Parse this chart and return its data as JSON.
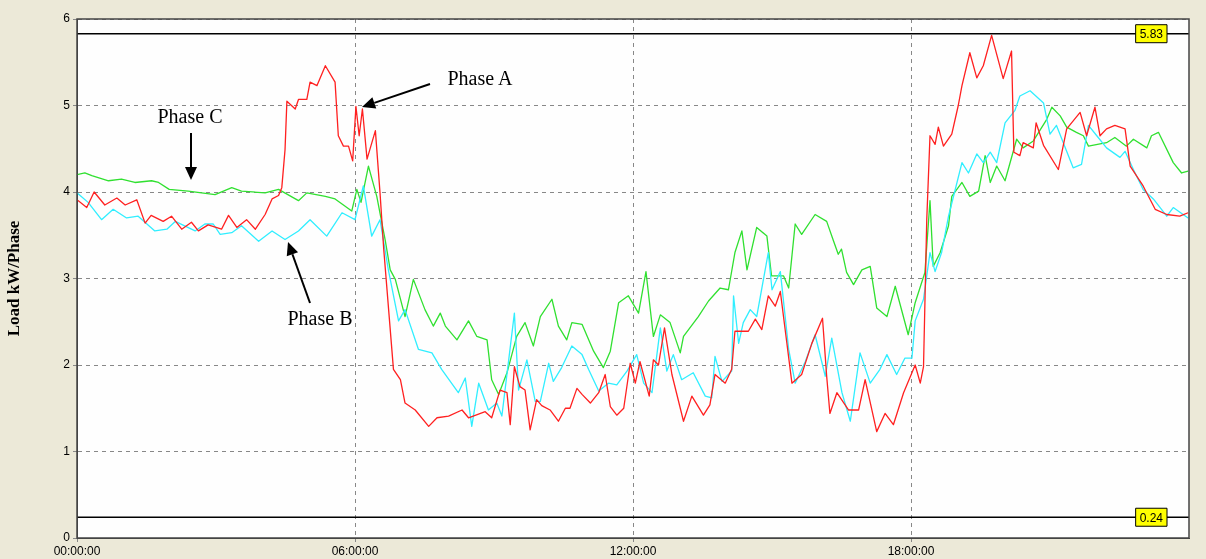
{
  "chart_data": {
    "type": "line",
    "ylabel": "Load kW/Phase",
    "xlim": [
      0,
      24
    ],
    "xticks": [
      {
        "value": 0,
        "label": "00:00:00"
      },
      {
        "value": 6,
        "label": "06:00:00"
      },
      {
        "value": 12,
        "label": "12:00:00"
      },
      {
        "value": 18,
        "label": "18:00:00"
      }
    ],
    "ylim": [
      0,
      6
    ],
    "yticks": [
      0,
      1,
      2,
      3,
      4,
      5,
      6
    ],
    "grid": true,
    "legend": false,
    "marker": "none",
    "line_style": "solid",
    "ref_lines": [
      {
        "axis": "y",
        "value": 5.83,
        "label": "5.83",
        "color": "#000000"
      },
      {
        "axis": "y",
        "value": 0.24,
        "label": "0.24",
        "color": "#000000"
      }
    ],
    "annotations": [
      "Phase A",
      "Phase B",
      "Phase C"
    ],
    "series": [
      {
        "color": "#ff2020",
        "x": [
          0,
          0.21,
          0.37,
          0.6,
          0.86,
          1.04,
          1.29,
          1.47,
          1.6,
          1.86,
          2.04,
          2.26,
          2.47,
          2.62,
          2.83,
          3.12,
          3.27,
          3.45,
          3.66,
          3.85,
          4.06,
          4.21,
          4.35,
          4.42,
          4.49,
          4.53,
          4.71,
          4.78,
          4.96,
          5.03,
          5.18,
          5.36,
          5.57,
          5.64,
          5.75,
          5.86,
          5.95,
          6.02,
          6.09,
          6.16,
          6.26,
          6.44,
          6.54,
          6.62,
          6.83,
          6.98,
          7.08,
          7.3,
          7.59,
          7.77,
          8.02,
          8.31,
          8.45,
          8.81,
          8.95,
          9.13,
          9.28,
          9.35,
          9.44,
          9.56,
          9.67,
          9.78,
          9.92,
          10.03,
          10.21,
          10.39,
          10.54,
          10.64,
          10.79,
          10.9,
          11.08,
          11.26,
          11.4,
          11.51,
          11.65,
          11.8,
          11.94,
          12.05,
          12.15,
          12.35,
          12.44,
          12.55,
          12.68,
          12.84,
          13.09,
          13.27,
          13.52,
          13.66,
          13.77,
          13.99,
          14.13,
          14.2,
          14.49,
          14.64,
          14.78,
          14.92,
          15.07,
          15.18,
          15.43,
          15.64,
          15.86,
          16.09,
          16.18,
          16.25,
          16.4,
          16.65,
          16.87,
          17.01,
          17.26,
          17.44,
          17.62,
          17.84,
          18.09,
          18.2,
          18.27,
          18.34,
          18.41,
          18.52,
          18.59,
          18.7,
          18.88,
          19.02,
          19.1,
          19.27,
          19.42,
          19.56,
          19.74,
          19.99,
          20.17,
          20.22,
          20.35,
          20.42,
          20.64,
          20.7,
          20.86,
          21.18,
          21.36,
          21.65,
          21.79,
          21.97,
          22.08,
          22.22,
          22.4,
          22.62,
          22.73,
          23.01,
          23.27,
          23.52,
          23.8,
          23.98
        ],
        "values": [
          3.91,
          3.82,
          4.0,
          3.85,
          3.93,
          3.85,
          3.91,
          3.64,
          3.73,
          3.66,
          3.72,
          3.57,
          3.65,
          3.55,
          3.62,
          3.57,
          3.73,
          3.59,
          3.68,
          3.57,
          3.74,
          3.92,
          3.96,
          4.05,
          4.49,
          5.05,
          4.96,
          5.07,
          5.07,
          5.27,
          5.23,
          5.46,
          5.27,
          4.65,
          4.53,
          4.53,
          4.36,
          4.99,
          4.65,
          4.96,
          4.38,
          4.71,
          3.99,
          3.34,
          1.95,
          1.83,
          1.56,
          1.48,
          1.29,
          1.39,
          1.41,
          1.48,
          1.39,
          1.46,
          1.39,
          1.71,
          1.68,
          1.31,
          1.98,
          1.75,
          1.71,
          1.25,
          1.6,
          1.53,
          1.48,
          1.35,
          1.5,
          1.5,
          1.73,
          1.66,
          1.56,
          1.68,
          1.89,
          1.52,
          1.42,
          1.5,
          2.02,
          1.79,
          2.04,
          1.64,
          2.06,
          2.0,
          2.43,
          1.89,
          1.35,
          1.64,
          1.42,
          1.54,
          1.89,
          1.79,
          1.95,
          2.39,
          2.39,
          2.53,
          2.41,
          2.8,
          2.68,
          2.85,
          1.79,
          1.89,
          2.25,
          2.54,
          1.87,
          1.44,
          1.68,
          1.48,
          1.48,
          1.83,
          1.23,
          1.44,
          1.31,
          1.68,
          2.0,
          1.79,
          1.98,
          3.68,
          4.65,
          4.55,
          4.75,
          4.53,
          4.67,
          5.0,
          5.23,
          5.61,
          5.32,
          5.46,
          5.81,
          5.31,
          5.63,
          4.46,
          4.42,
          4.57,
          4.51,
          4.8,
          4.54,
          4.26,
          4.73,
          4.92,
          4.65,
          4.98,
          4.65,
          4.73,
          4.77,
          4.73,
          4.3,
          4.07,
          3.8,
          3.74,
          3.72,
          3.76
        ]
      },
      {
        "color": "#30eeff",
        "x": [
          0,
          0.24,
          0.53,
          0.78,
          1.07,
          1.32,
          1.68,
          1.94,
          2.12,
          2.55,
          2.76,
          2.94,
          3.09,
          3.34,
          3.55,
          3.92,
          4.21,
          4.49,
          4.78,
          5.03,
          5.39,
          5.72,
          6.0,
          6.18,
          6.36,
          6.54,
          6.72,
          6.94,
          7.08,
          7.37,
          7.66,
          7.87,
          8.23,
          8.38,
          8.52,
          8.67,
          8.88,
          9.06,
          9.17,
          9.44,
          9.53,
          9.71,
          9.89,
          10.0,
          10.18,
          10.28,
          10.46,
          10.68,
          10.9,
          11.04,
          11.26,
          11.47,
          11.65,
          11.87,
          12.08,
          12.23,
          12.41,
          12.59,
          12.73,
          12.87,
          13.05,
          13.3,
          13.56,
          13.7,
          13.77,
          13.92,
          14.13,
          14.17,
          14.28,
          14.38,
          14.53,
          14.67,
          14.92,
          15.0,
          15.18,
          15.36,
          15.5,
          15.72,
          15.93,
          16.15,
          16.29,
          16.51,
          16.69,
          16.9,
          17.12,
          17.33,
          17.48,
          17.69,
          17.87,
          18.02,
          18.09,
          18.27,
          18.41,
          18.52,
          18.66,
          18.81,
          19.1,
          19.24,
          19.42,
          19.56,
          19.71,
          19.85,
          20.03,
          20.24,
          20.35,
          20.57,
          20.86,
          21.0,
          21.14,
          21.5,
          21.68,
          21.83,
          22.01,
          22.22,
          22.51,
          22.62,
          22.8,
          23.01,
          23.23,
          23.52,
          23.66,
          23.98
        ],
        "values": [
          3.99,
          3.88,
          3.68,
          3.8,
          3.7,
          3.72,
          3.55,
          3.57,
          3.66,
          3.55,
          3.63,
          3.63,
          3.51,
          3.53,
          3.61,
          3.43,
          3.55,
          3.45,
          3.55,
          3.68,
          3.49,
          3.76,
          3.68,
          4.07,
          3.49,
          3.68,
          3.1,
          2.51,
          2.64,
          2.18,
          2.14,
          1.95,
          1.68,
          1.85,
          1.29,
          1.79,
          1.48,
          1.56,
          1.41,
          2.6,
          1.71,
          2.06,
          1.58,
          1.58,
          2.02,
          1.81,
          1.97,
          2.22,
          2.12,
          1.95,
          1.7,
          1.79,
          1.77,
          1.93,
          2.12,
          1.79,
          1.68,
          2.43,
          1.93,
          2.12,
          1.83,
          1.91,
          1.64,
          1.62,
          2.1,
          1.81,
          1.93,
          2.8,
          2.25,
          2.49,
          2.64,
          2.56,
          3.3,
          2.87,
          3.08,
          2.18,
          1.79,
          2.04,
          2.35,
          1.87,
          2.31,
          1.68,
          1.35,
          2.14,
          1.79,
          1.95,
          2.12,
          1.89,
          2.08,
          2.08,
          2.51,
          2.76,
          3.3,
          3.08,
          3.3,
          3.72,
          4.34,
          4.22,
          4.44,
          4.34,
          4.46,
          4.34,
          4.8,
          4.94,
          5.11,
          5.17,
          5.03,
          4.67,
          4.77,
          4.28,
          4.32,
          4.77,
          4.65,
          4.51,
          4.4,
          4.47,
          4.26,
          4.03,
          3.92,
          3.72,
          3.82,
          3.7
        ]
      },
      {
        "color": "#30e030",
        "x": [
          0,
          0.17,
          0.32,
          0.68,
          0.96,
          1.25,
          1.61,
          1.76,
          1.99,
          2.4,
          2.98,
          3.34,
          3.55,
          4.06,
          4.35,
          4.78,
          4.96,
          5.36,
          5.57,
          5.93,
          6.04,
          6.13,
          6.29,
          6.47,
          6.65,
          6.76,
          6.87,
          7.08,
          7.26,
          7.51,
          7.69,
          7.84,
          7.95,
          8.2,
          8.45,
          8.63,
          8.85,
          8.95,
          9.1,
          9.28,
          9.49,
          9.67,
          9.85,
          10.0,
          10.25,
          10.39,
          10.57,
          10.68,
          10.9,
          11.15,
          11.36,
          11.51,
          11.69,
          11.9,
          12.12,
          12.28,
          12.44,
          12.59,
          12.8,
          13.02,
          13.09,
          13.41,
          13.63,
          13.88,
          14.06,
          14.2,
          14.35,
          14.46,
          14.67,
          14.89,
          14.99,
          15.25,
          15.36,
          15.5,
          15.64,
          15.93,
          16.18,
          16.33,
          16.43,
          16.5,
          16.61,
          16.76,
          16.94,
          17.12,
          17.26,
          17.48,
          17.66,
          17.94,
          18.09,
          18.3,
          18.41,
          18.48,
          18.63,
          18.81,
          18.88,
          19.1,
          19.27,
          19.46,
          19.6,
          19.71,
          19.85,
          20.03,
          20.28,
          20.42,
          20.64,
          20.93,
          21.04,
          21.22,
          21.36,
          21.57,
          21.72,
          21.83,
          22.22,
          22.4,
          22.65,
          22.8,
          23.09,
          23.19,
          23.34,
          23.66,
          23.84,
          23.98
        ],
        "values": [
          4.2,
          4.22,
          4.19,
          4.13,
          4.15,
          4.11,
          4.13,
          4.11,
          4.03,
          4.01,
          3.97,
          4.05,
          4.01,
          3.99,
          4.03,
          3.9,
          3.99,
          3.95,
          3.92,
          3.78,
          4.03,
          3.88,
          4.3,
          3.95,
          3.45,
          3.1,
          2.99,
          2.56,
          2.99,
          2.64,
          2.45,
          2.6,
          2.45,
          2.29,
          2.51,
          2.33,
          2.29,
          1.83,
          1.66,
          1.91,
          2.33,
          2.49,
          2.22,
          2.56,
          2.76,
          2.45,
          2.29,
          2.49,
          2.47,
          2.16,
          1.97,
          2.16,
          2.72,
          2.8,
          2.6,
          3.08,
          2.33,
          2.58,
          2.49,
          2.14,
          2.33,
          2.56,
          2.74,
          2.89,
          2.87,
          3.3,
          3.55,
          3.1,
          3.59,
          3.49,
          3.03,
          3.03,
          2.89,
          3.63,
          3.51,
          3.74,
          3.66,
          3.43,
          3.28,
          3.34,
          3.07,
          2.93,
          3.1,
          3.14,
          2.66,
          2.56,
          2.91,
          2.35,
          2.72,
          3.07,
          3.9,
          3.14,
          3.3,
          3.61,
          3.95,
          4.11,
          3.95,
          4.01,
          4.42,
          4.11,
          4.3,
          4.13,
          4.61,
          4.51,
          4.59,
          4.84,
          4.98,
          4.88,
          4.75,
          4.69,
          4.65,
          4.53,
          4.57,
          4.63,
          4.53,
          4.61,
          4.51,
          4.65,
          4.69,
          4.34,
          4.22,
          4.24
        ]
      }
    ]
  }
}
